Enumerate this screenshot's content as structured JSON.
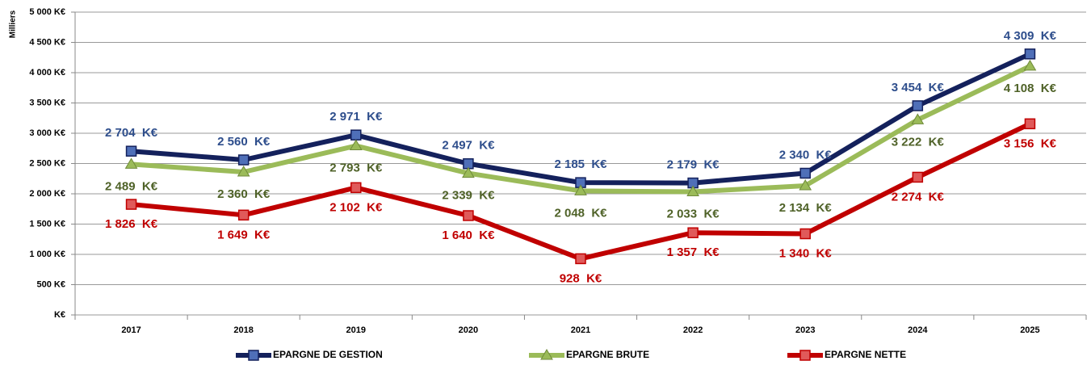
{
  "chart_data": {
    "type": "line",
    "y_label": "Milliers",
    "categories": [
      "2017",
      "2018",
      "2019",
      "2020",
      "2021",
      "2022",
      "2023",
      "2024",
      "2025"
    ],
    "ylim": [
      0,
      5000
    ],
    "yticks": [
      {
        "value": 0,
        "label": "K€"
      },
      {
        "value": 500,
        "label": "500 K€"
      },
      {
        "value": 1000,
        "label": "1 000 K€"
      },
      {
        "value": 1500,
        "label": "1 500 K€"
      },
      {
        "value": 2000,
        "label": "2 000 K€"
      },
      {
        "value": 2500,
        "label": "2 500 K€"
      },
      {
        "value": 3000,
        "label": "3 000 K€"
      },
      {
        "value": 3500,
        "label": "3 500 K€"
      },
      {
        "value": 4000,
        "label": "4 000 K€"
      },
      {
        "value": 4500,
        "label": "4 500 K€"
      },
      {
        "value": 5000,
        "label": "5 000 K€"
      }
    ],
    "grid": true,
    "legend": "bottom",
    "series": [
      {
        "name": "EPARGNE DE GESTION",
        "color": "#14215c",
        "marker": "square",
        "marker_color": "#4f6fb8",
        "label_color": "#2e4e8c",
        "values": [
          2704,
          2560,
          2971,
          2497,
          2185,
          2179,
          2340,
          3454,
          4309
        ],
        "value_labels": [
          "2 704  K€",
          "2 560  K€",
          "2 971  K€",
          "2 497  K€",
          "2 185  K€",
          "2 179  K€",
          "2 340  K€",
          "3 454  K€",
          "4 309  K€"
        ]
      },
      {
        "name": "EPARGNE BRUTE",
        "color": "#9bbb59",
        "marker": "triangle",
        "marker_color": "#9bbb59",
        "label_color": "#4f6228",
        "values": [
          2489,
          2360,
          2793,
          2339,
          2048,
          2033,
          2134,
          3222,
          4108
        ],
        "value_labels": [
          "2 489  K€",
          "2 360  K€",
          "2 793  K€",
          "2 339  K€",
          "2 048  K€",
          "2 033  K€",
          "2 134  K€",
          "3 222  K€",
          "4 108  K€"
        ]
      },
      {
        "name": "EPARGNE NETTE",
        "color": "#c00000",
        "marker": "square",
        "marker_color": "#e05a5a",
        "label_color": "#c00000",
        "values": [
          1826,
          1649,
          2102,
          1640,
          928,
          1357,
          1340,
          2274,
          3156
        ],
        "value_labels": [
          "1 826  K€",
          "1 649  K€",
          "2 102  K€",
          "1 640  K€",
          "928  K€",
          "1 357  K€",
          "1 340  K€",
          "2 274  K€",
          "3 156  K€"
        ]
      }
    ]
  }
}
